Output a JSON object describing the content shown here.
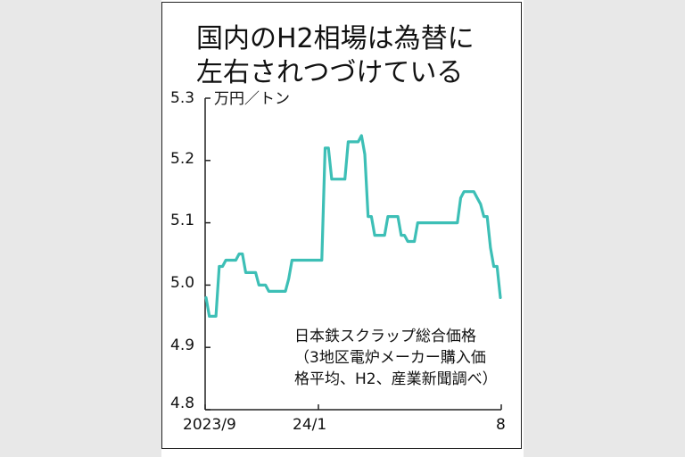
{
  "chart_data": {
    "type": "line",
    "title_lines": [
      "国内のH2相場は為替に",
      "左右されつづけている"
    ],
    "unit": "万円／トン",
    "ylim": [
      4.8,
      5.3
    ],
    "yticks": [
      "5.3",
      "5.2",
      "5.1",
      "5.0",
      "4.9",
      "4.8"
    ],
    "xtick_labels": [
      "2023/9",
      "24/1",
      "8"
    ],
    "note_lines": [
      "日本鉄スクラップ総合価格",
      "（3地区電炉メーカー購入価",
      "格平均、H2、産業新聞調べ）"
    ],
    "line_color": "#3dbfb6",
    "series": [
      {
        "values": [
          4.98,
          4.95,
          4.95,
          4.95,
          5.03,
          5.03,
          5.04,
          5.04,
          5.04,
          5.04,
          5.05,
          5.05,
          5.02,
          5.02,
          5.02,
          5.02,
          5.0,
          5.0,
          5.0,
          4.99,
          4.99,
          4.99,
          4.99,
          4.99,
          4.99,
          5.01,
          5.04,
          5.04,
          5.04,
          5.04,
          5.04,
          5.04,
          5.04,
          5.04,
          5.04,
          5.04,
          5.22,
          5.22,
          5.17,
          5.17,
          5.17,
          5.17,
          5.17,
          5.23,
          5.23,
          5.23,
          5.23,
          5.24,
          5.21,
          5.11,
          5.11,
          5.08,
          5.08,
          5.08,
          5.08,
          5.11,
          5.11,
          5.11,
          5.11,
          5.08,
          5.08,
          5.07,
          5.07,
          5.07,
          5.1,
          5.1,
          5.1,
          5.1,
          5.1,
          5.1,
          5.1,
          5.1,
          5.1,
          5.1,
          5.1,
          5.1,
          5.1,
          5.14,
          5.15,
          5.15,
          5.15,
          5.15,
          5.14,
          5.13,
          5.11,
          5.11,
          5.06,
          5.03,
          5.03,
          4.98
        ]
      }
    ]
  }
}
